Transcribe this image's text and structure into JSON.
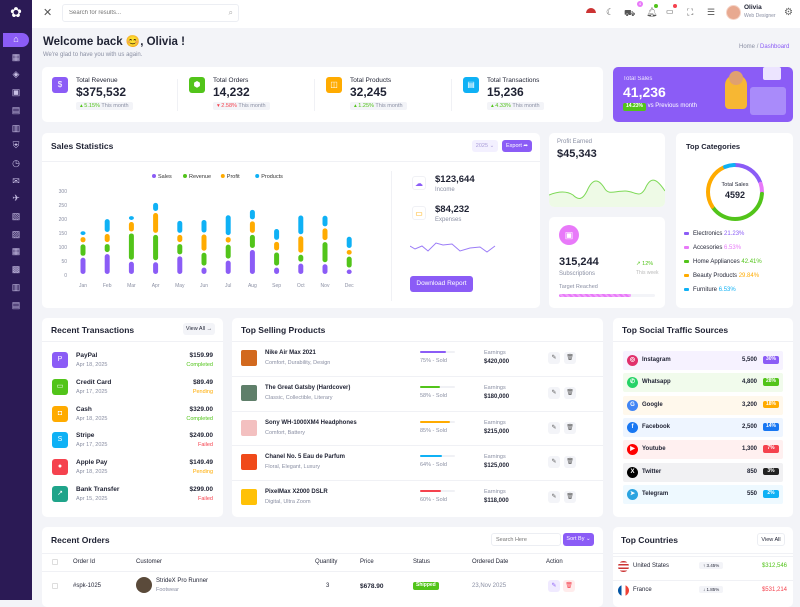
{
  "colors": {
    "primary": "#8b5cf6",
    "green": "#52c41a",
    "orange": "#ffab00",
    "blue": "#0fb1f5",
    "red": "#f5424e",
    "pink": "#e879f9",
    "sidebar": "#2b1a55"
  },
  "sidebar": {
    "icons": [
      "logo-icon",
      "home-icon",
      "grid-icon",
      "layers-icon",
      "box-icon",
      "file-icon",
      "doc-icon",
      "shield-icon",
      "clock-icon",
      "mail-icon",
      "rocket-icon",
      "gift-icon",
      "chart-icon",
      "table-icon",
      "map-icon",
      "book-icon",
      "layout-icon"
    ]
  },
  "topbar": {
    "search_placeholder": "Search for results...",
    "user_name": "Olivia",
    "user_role": "Web Designer",
    "cart_badge": "4"
  },
  "header": {
    "title": "Welcome back 😊, Olivia !",
    "subtitle": "We're glad to have you with us again.",
    "breadcrumb": [
      "Home",
      "Dashboard"
    ]
  },
  "stats": [
    {
      "label": "Total Revenue",
      "value": "$375,532",
      "change": "5.15%",
      "dir": "up",
      "period": "This month",
      "color": "#8b5cf6",
      "icon": "$"
    },
    {
      "label": "Total Orders",
      "value": "14,232",
      "change": "2.58%",
      "dir": "down",
      "period": "This month",
      "color": "#52c41a",
      "icon": "⬢"
    },
    {
      "label": "Total Products",
      "value": "32,245",
      "change": "1.25%",
      "dir": "up",
      "period": "This month",
      "color": "#ffab00",
      "icon": "◫"
    },
    {
      "label": "Total Transactions",
      "value": "15,236",
      "change": "4.33%",
      "dir": "up",
      "period": "This month",
      "color": "#0fb1f5",
      "icon": "▤"
    }
  ],
  "total_sales": {
    "label": "Total Sales",
    "value": "41,236",
    "badge": "14.23%",
    "note": "vs Previous month"
  },
  "sales_statistics": {
    "title": "Sales Statistics",
    "year": "2025",
    "export": "Export",
    "income": {
      "value": "$123,644",
      "label": "Income"
    },
    "expenses": {
      "value": "$84,232",
      "label": "Expenses"
    },
    "download": "Download Report"
  },
  "chart_data": {
    "type": "bar",
    "stacked": true,
    "categories": [
      "Jan",
      "Feb",
      "Mar",
      "Apr",
      "May",
      "Jun",
      "Jul",
      "Aug",
      "Sep",
      "Oct",
      "Nov",
      "Dec"
    ],
    "yticks": [
      "0",
      "50",
      "100",
      "150",
      "200",
      "250",
      "300"
    ],
    "ylim": [
      0,
      300
    ],
    "legend": "top",
    "series": [
      {
        "name": "Sales",
        "color": "#8b5cf6",
        "values": [
          65,
          78,
          51,
          49,
          70,
          30,
          55,
          93,
          30,
          44,
          42,
          23
        ]
      },
      {
        "name": "Revenue",
        "color": "#52c41a",
        "values": [
          48,
          36,
          101,
          98,
          44,
          53,
          57,
          54,
          54,
          32,
          79,
          46
        ]
      },
      {
        "name": "Profit",
        "color": "#ffab00",
        "values": [
          26,
          36,
          41,
          78,
          33,
          65,
          27,
          48,
          38,
          66,
          49,
          24
        ]
      },
      {
        "name": "Products",
        "color": "#0fb1f5",
        "values": [
          21,
          53,
          21,
          36,
          50,
          52,
          78,
          41,
          46,
          74,
          45,
          47
        ]
      }
    ]
  },
  "profit": {
    "label": "Profit Earned",
    "value": "$45,343"
  },
  "subscriptions": {
    "value": "315,244",
    "label": "Subscriptions",
    "change": "12%",
    "period": "This week",
    "target_label": "Target Reached",
    "progress": 0.75
  },
  "categories": {
    "title": "Top Categories",
    "center_label": "Total Sales",
    "center_value": "4592",
    "items": [
      {
        "name": "Electronics",
        "pct": "21.23%",
        "value": 21.23,
        "color": "#8b5cf6"
      },
      {
        "name": "Accesories",
        "pct": "6.53%",
        "value": 6.53,
        "color": "#e879f9"
      },
      {
        "name": "Home Appliances",
        "pct": "42.41%",
        "value": 42.41,
        "color": "#52c41a"
      },
      {
        "name": "Beauty Products",
        "pct": "29.84%",
        "value": 29.84,
        "color": "#ffab00"
      },
      {
        "name": "Furniture",
        "pct": "6.53%",
        "value": 6.53,
        "color": "#0fb1f5"
      }
    ]
  },
  "transactions": {
    "title": "Recent Transactions",
    "view_all": "View All",
    "items": [
      {
        "name": "PayPal",
        "date": "Apr 18, 2025",
        "amount": "$159.99",
        "status": "Completed",
        "color": "#8b5cf6",
        "scolor": "#52c41a",
        "icon": "P"
      },
      {
        "name": "Credit Card",
        "date": "Apr 17, 2025",
        "amount": "$89.49",
        "status": "Pending",
        "color": "#52c41a",
        "scolor": "#ffab00",
        "icon": "▭"
      },
      {
        "name": "Cash",
        "date": "Apr 18, 2025",
        "amount": "$329.00",
        "status": "Completed",
        "color": "#ffab00",
        "scolor": "#52c41a",
        "icon": "◘"
      },
      {
        "name": "Stripe",
        "date": "Apr 17, 2025",
        "amount": "$249.00",
        "status": "Failed",
        "color": "#0fb1f5",
        "scolor": "#f5424e",
        "icon": "S"
      },
      {
        "name": "Apple Pay",
        "date": "Apr 18, 2025",
        "amount": "$149.49",
        "status": "Pending",
        "color": "#f5424e",
        "scolor": "#ffab00",
        "icon": "●"
      },
      {
        "name": "Bank Transfer",
        "date": "Apr 15, 2025",
        "amount": "$299.00",
        "status": "Failed",
        "color": "#20a48a",
        "scolor": "#f5424e",
        "icon": "↗"
      }
    ]
  },
  "products": {
    "title": "Top Selling Products",
    "earnings_label": "Earnings",
    "items": [
      {
        "name": "Nike Air Max 2021",
        "tags": "Comfort, Durability, Design",
        "sold": "75% - Sold",
        "pct": 0.75,
        "color": "#8b5cf6",
        "earnings": "$420,000",
        "thumb": "#d2691e"
      },
      {
        "name": "The Great Gatsby (Hardcover)",
        "tags": "Classic, Collectible, Literary",
        "sold": "58% - Sold",
        "pct": 0.58,
        "color": "#52c41a",
        "earnings": "$180,000",
        "thumb": "#5f7f6a"
      },
      {
        "name": "Sony WH-1000XM4 Headphones",
        "tags": "Comfort, Battery",
        "sold": "85% - Sold",
        "pct": 0.85,
        "color": "#ffab00",
        "earnings": "$215,000",
        "thumb": "#f3c0c0"
      },
      {
        "name": "Chanel No. 5 Eau de Parfum",
        "tags": "Floral, Elegant, Luxury",
        "sold": "64% - Sold",
        "pct": 0.64,
        "color": "#0fb1f5",
        "earnings": "$125,000",
        "thumb": "#f04a1a"
      },
      {
        "name": "PixelMax X2000 DSLR",
        "tags": "Digital, Ultra Zoom",
        "sold": "60% - Sold",
        "pct": 0.6,
        "color": "#f5424e",
        "earnings": "$118,000",
        "thumb": "#ffc107"
      }
    ]
  },
  "social": {
    "title": "Top Social Traffic Sources",
    "items": [
      {
        "name": "Instagram",
        "value": "5,500",
        "pct": "30%",
        "color": "#8b5cf6",
        "bg": "#f6f2ff",
        "icon": "◎",
        "icolor": "#e1306c"
      },
      {
        "name": "Whatsapp",
        "value": "4,800",
        "pct": "28%",
        "color": "#52c41a",
        "bg": "#f1fbec",
        "icon": "✆",
        "icolor": "#25d366"
      },
      {
        "name": "Google",
        "value": "3,200",
        "pct": "18%",
        "color": "#ffab00",
        "bg": "#fff8ec",
        "icon": "G",
        "icolor": "#4285f4"
      },
      {
        "name": "Facebook",
        "value": "2,500",
        "pct": "14%",
        "color": "#1877f2",
        "bg": "#eef5ff",
        "icon": "f",
        "icolor": "#1877f2"
      },
      {
        "name": "Youtube",
        "value": "1,300",
        "pct": "7%",
        "color": "#f5424e",
        "bg": "#fff0f0",
        "icon": "▶",
        "icolor": "#ff0000"
      },
      {
        "name": "Twitter",
        "value": "850",
        "pct": "3%",
        "color": "#222",
        "bg": "#f1f1f3",
        "icon": "X",
        "icolor": "#000"
      },
      {
        "name": "Telegram",
        "value": "550",
        "pct": "2%",
        "color": "#0fb1f5",
        "bg": "#eef9ff",
        "icon": "➤",
        "icolor": "#2aa3e0"
      }
    ]
  },
  "orders": {
    "title": "Recent Orders",
    "search_placeholder": "Search Here",
    "sort": "Sort By",
    "columns": [
      "Order Id",
      "Customer",
      "Quantity",
      "Price",
      "Status",
      "Ordered Date",
      "Action"
    ],
    "rows": [
      {
        "id": "#spk-1025",
        "customer": "StrideX Pro Runner",
        "category": "Footwear",
        "qty": "3",
        "price": "$678.90",
        "status": "Shipped",
        "date": "23,Nov 2025"
      }
    ]
  },
  "countries": {
    "title": "Top Countries",
    "view_all": "View All",
    "items": [
      {
        "name": "United States",
        "change": "3.45%",
        "dir": "up",
        "value": "$312,546",
        "color": "#52c41a"
      },
      {
        "name": "France",
        "change": "1.85%",
        "dir": "down",
        "value": "$531,214",
        "color": "#f5424e"
      }
    ]
  }
}
